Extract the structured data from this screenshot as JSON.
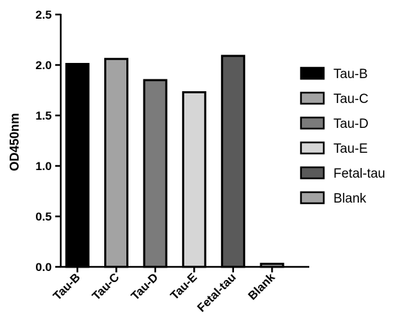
{
  "chart_data": {
    "type": "bar",
    "ylabel": "OD450nm",
    "ylim": [
      0,
      2.5
    ],
    "yticks": [
      "0.0",
      "0.5",
      "1.0",
      "1.5",
      "2.0",
      "2.5"
    ],
    "categories": [
      "Tau-B",
      "Tau-C",
      "Tau-D",
      "Tau-E",
      "Fetal-tau",
      "Blank"
    ],
    "values": [
      2.01,
      2.06,
      1.85,
      1.73,
      2.09,
      0.03
    ],
    "colors": [
      "#000000",
      "#a3a3a3",
      "#7b7b7b",
      "#d6d6d6",
      "#5a5a5a",
      "#a3a3a3"
    ],
    "legend": {
      "position": "right",
      "entries": [
        "Tau-B",
        "Tau-C",
        "Tau-D",
        "Tau-E",
        "Fetal-tau",
        "Blank"
      ]
    },
    "grid": false
  }
}
